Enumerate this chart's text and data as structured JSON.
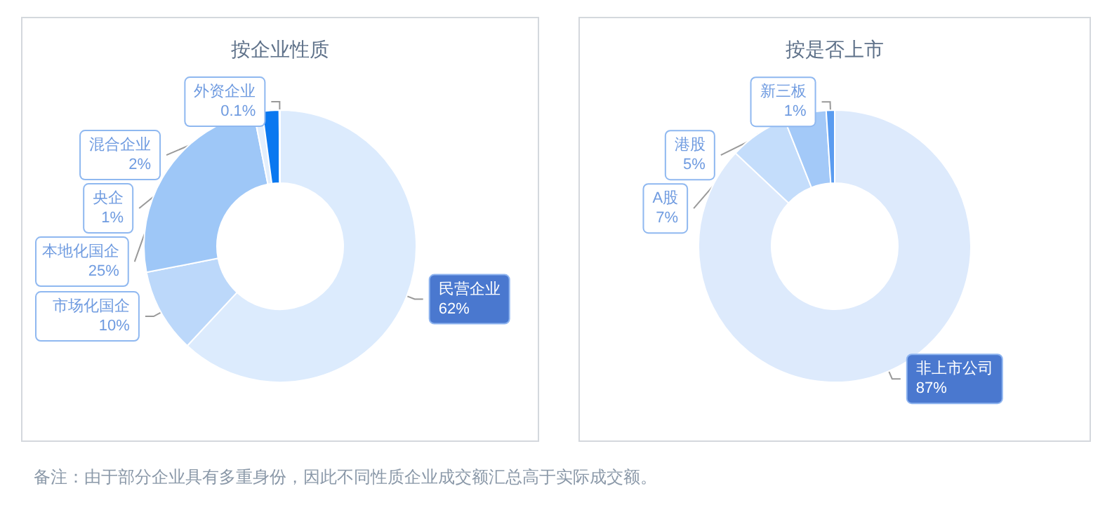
{
  "chart_data": [
    {
      "type": "donut",
      "title": "按企业性质",
      "categories": [
        "民营企业",
        "市场化国企",
        "本地化国企",
        "央企",
        "混合企业",
        "外资企业"
      ],
      "values": [
        62,
        10,
        25,
        1,
        2,
        0.1
      ],
      "value_labels": [
        "62%",
        "10%",
        "25%",
        "1%",
        "2%",
        "0.1%"
      ],
      "colors": [
        "#dcebfd",
        "#bcd8fa",
        "#9ec7f7",
        "#e3effd",
        "#0a78f0",
        "#4f8fe8"
      ],
      "legend": false
    },
    {
      "type": "donut",
      "title": "按是否上市",
      "categories": [
        "非上市公司",
        "A股",
        "港股",
        "新三板"
      ],
      "values": [
        87,
        7,
        5,
        1
      ],
      "value_labels": [
        "87%",
        "7%",
        "5%",
        "1%"
      ],
      "colors": [
        "#ddeafc",
        "#c4ddfb",
        "#a3c9f8",
        "#5a9cf0"
      ],
      "legend": false,
      "annotations": [
        "备注：由于部分企业具有多重身份，因此不同性质企业成交额汇总高于实际成交额。"
      ]
    }
  ]
}
